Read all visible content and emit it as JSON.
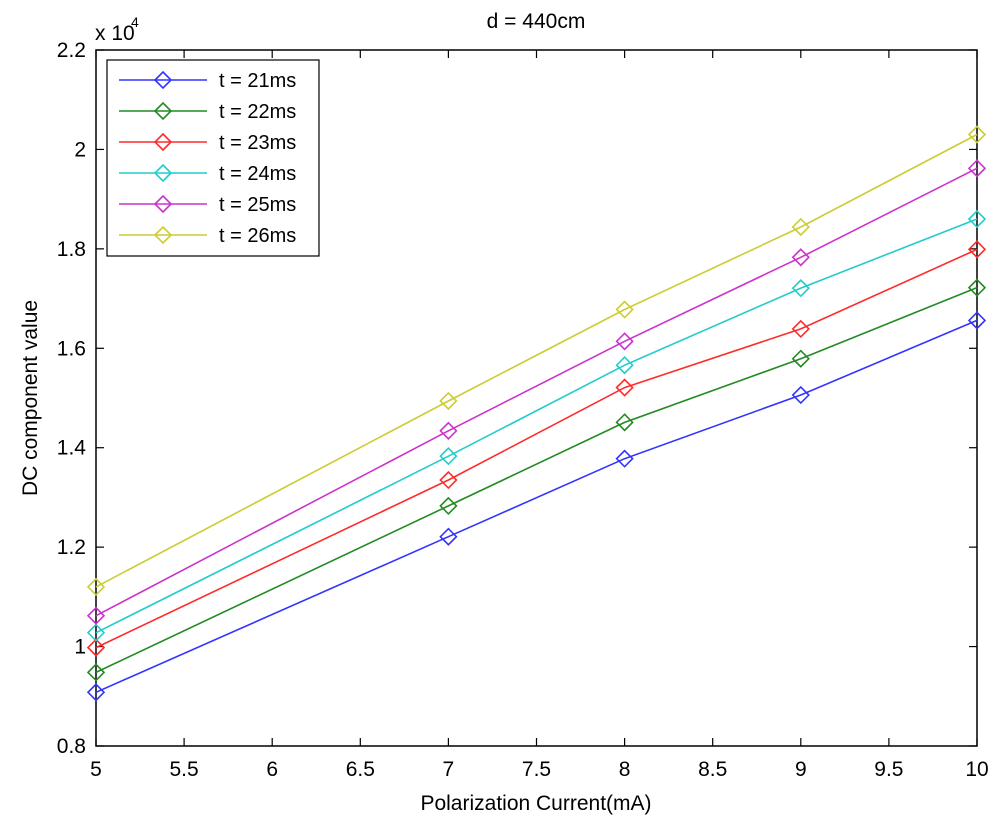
{
  "chart_data": {
    "type": "line",
    "title": "d = 440cm",
    "xlabel": "Polarization Current(mA)",
    "ylabel": "DC component value",
    "exponent_base": "x 10",
    "exponent_power": "4",
    "xlim": [
      5,
      10
    ],
    "ylim": [
      0.8,
      2.2
    ],
    "xticks": [
      5,
      5.5,
      6,
      6.5,
      7,
      7.5,
      8,
      8.5,
      9,
      9.5,
      10
    ],
    "xtick_labels": [
      "5",
      "5.5",
      "6",
      "6.5",
      "7",
      "7.5",
      "8",
      "8.5",
      "9",
      "9.5",
      "10"
    ],
    "yticks": [
      0.8,
      1.0,
      1.2,
      1.4,
      1.6,
      1.8,
      2.0,
      2.2
    ],
    "ytick_labels": [
      "0.8",
      "1",
      "1.2",
      "1.4",
      "1.6",
      "1.8",
      "2",
      "2.2"
    ],
    "x": [
      5,
      7,
      8,
      9,
      10
    ],
    "marker": "diamond",
    "legend_position": "top-left",
    "series": [
      {
        "name": "t = 21ms",
        "color": "#3333ff",
        "values": [
          0.908,
          1.221,
          1.378,
          1.506,
          1.656
        ]
      },
      {
        "name": "t = 22ms",
        "color": "#228b22",
        "values": [
          0.948,
          1.283,
          1.451,
          1.579,
          1.722
        ]
      },
      {
        "name": "t = 23ms",
        "color": "#ff2a2a",
        "values": [
          0.998,
          1.335,
          1.521,
          1.639,
          1.799
        ]
      },
      {
        "name": "t = 24ms",
        "color": "#22cccc",
        "values": [
          1.028,
          1.383,
          1.566,
          1.721,
          1.86
        ]
      },
      {
        "name": "t = 25ms",
        "color": "#cc33cc",
        "values": [
          1.062,
          1.434,
          1.614,
          1.783,
          1.962
        ]
      },
      {
        "name": "t = 26ms",
        "color": "#cccc33",
        "values": [
          1.12,
          1.494,
          1.678,
          1.844,
          2.03
        ]
      }
    ]
  }
}
